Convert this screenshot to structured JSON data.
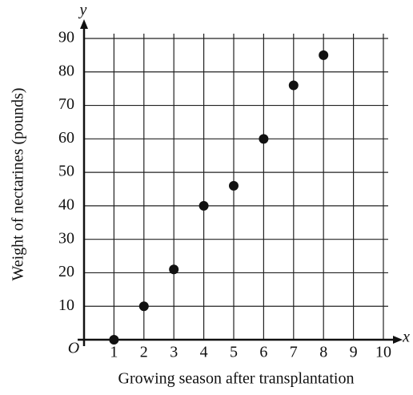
{
  "chart_data": {
    "type": "scatter",
    "x_label": "Growing season after transplantation",
    "y_label": "Weight of nectarines (pounds)",
    "x_symbol": "x",
    "y_symbol": "y",
    "origin_label": "O",
    "x": [
      1,
      2,
      3,
      4,
      5,
      6,
      7,
      8
    ],
    "values": [
      0,
      10,
      21,
      40,
      46,
      60,
      76,
      85
    ],
    "color": "#111111",
    "xlim": [
      0,
      10
    ],
    "ylim": [
      0,
      90
    ],
    "xticks": [
      1,
      2,
      3,
      4,
      5,
      6,
      7,
      8,
      9,
      10
    ],
    "yticks": [
      10,
      20,
      30,
      40,
      50,
      60,
      70,
      80,
      90
    ],
    "grid": true
  }
}
